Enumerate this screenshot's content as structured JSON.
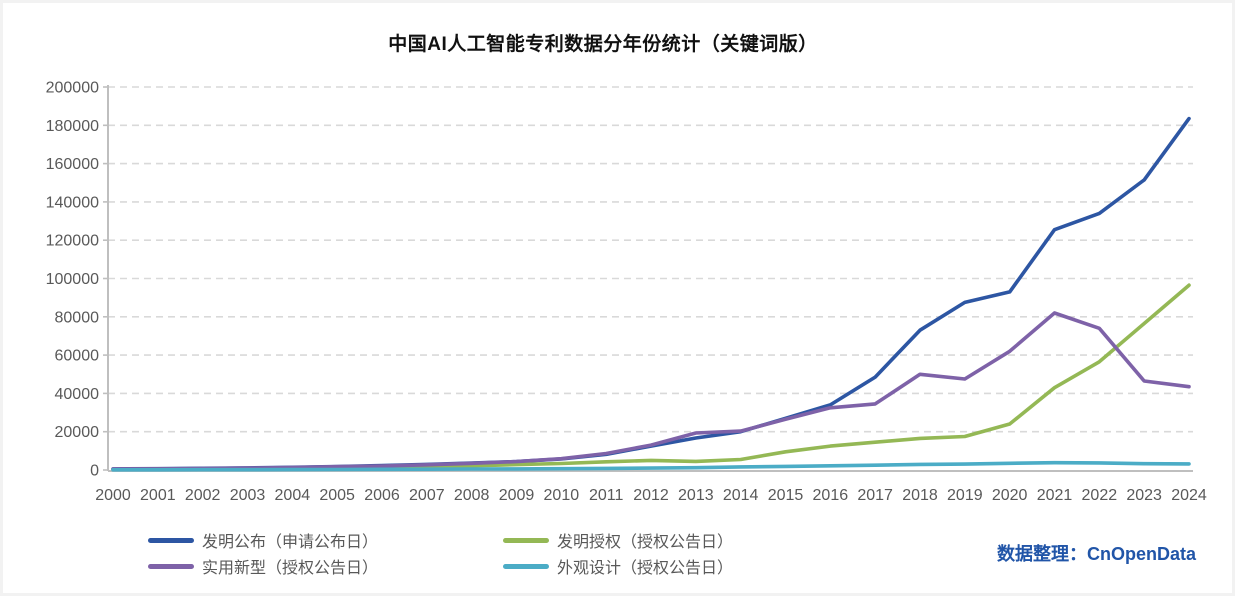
{
  "title": "中国AI人工智能专利数据分年份统计（关键词版）",
  "credit": {
    "text": "数据整理：CnOpenData",
    "color": "#2155a8"
  },
  "axis_style": {
    "label_color": "#595959",
    "axis_line_color": "#bfbfbf",
    "grid_color": "#d9d9d9"
  },
  "chart_data": {
    "type": "line",
    "title": "中国AI人工智能专利数据分年份统计（关键词版）",
    "xlabel": "",
    "ylabel": "",
    "x": [
      2000,
      2001,
      2002,
      2003,
      2004,
      2005,
      2006,
      2007,
      2008,
      2009,
      2010,
      2011,
      2012,
      2013,
      2014,
      2015,
      2016,
      2017,
      2018,
      2019,
      2020,
      2021,
      2022,
      2023,
      2024
    ],
    "ylim": [
      0,
      200000
    ],
    "ytick_step": 20000,
    "yticks": [
      0,
      20000,
      40000,
      60000,
      80000,
      100000,
      120000,
      140000,
      160000,
      180000,
      200000
    ],
    "grid": "horizontal-dashed",
    "legend_position": "bottom",
    "series": [
      {
        "name": "发明公布（申请公布日）",
        "color": "#2d56a3",
        "values": [
          600,
          700,
          900,
          1100,
          1400,
          1800,
          2300,
          2900,
          3600,
          4400,
          5800,
          8200,
          12500,
          16700,
          20000,
          27000,
          34000,
          48500,
          73000,
          87500,
          93000,
          125500,
          134000,
          151500,
          183500
        ]
      },
      {
        "name": "发明授权（授权公告日）",
        "color": "#94b855",
        "values": [
          300,
          400,
          500,
          650,
          800,
          1000,
          1300,
          1700,
          2200,
          2800,
          3400,
          4300,
          5000,
          4500,
          5500,
          9500,
          12500,
          14500,
          16500,
          17500,
          24000,
          43000,
          56500,
          76500,
          96500
        ]
      },
      {
        "name": "实用新型（授权公告日）",
        "color": "#7e62a8",
        "values": [
          500,
          600,
          800,
          1000,
          1300,
          1700,
          2100,
          2700,
          3500,
          4400,
          5900,
          8600,
          13000,
          19300,
          20300,
          26500,
          32500,
          34500,
          50000,
          47500,
          62000,
          82000,
          74000,
          46500,
          43500
        ]
      },
      {
        "name": "外观设计（授权公告日）",
        "color": "#4bacc6",
        "values": [
          100,
          120,
          150,
          180,
          220,
          280,
          350,
          420,
          500,
          600,
          700,
          850,
          1000,
          1200,
          1600,
          1900,
          2200,
          2500,
          2900,
          3100,
          3500,
          3800,
          3700,
          3300,
          3200
        ]
      }
    ]
  }
}
